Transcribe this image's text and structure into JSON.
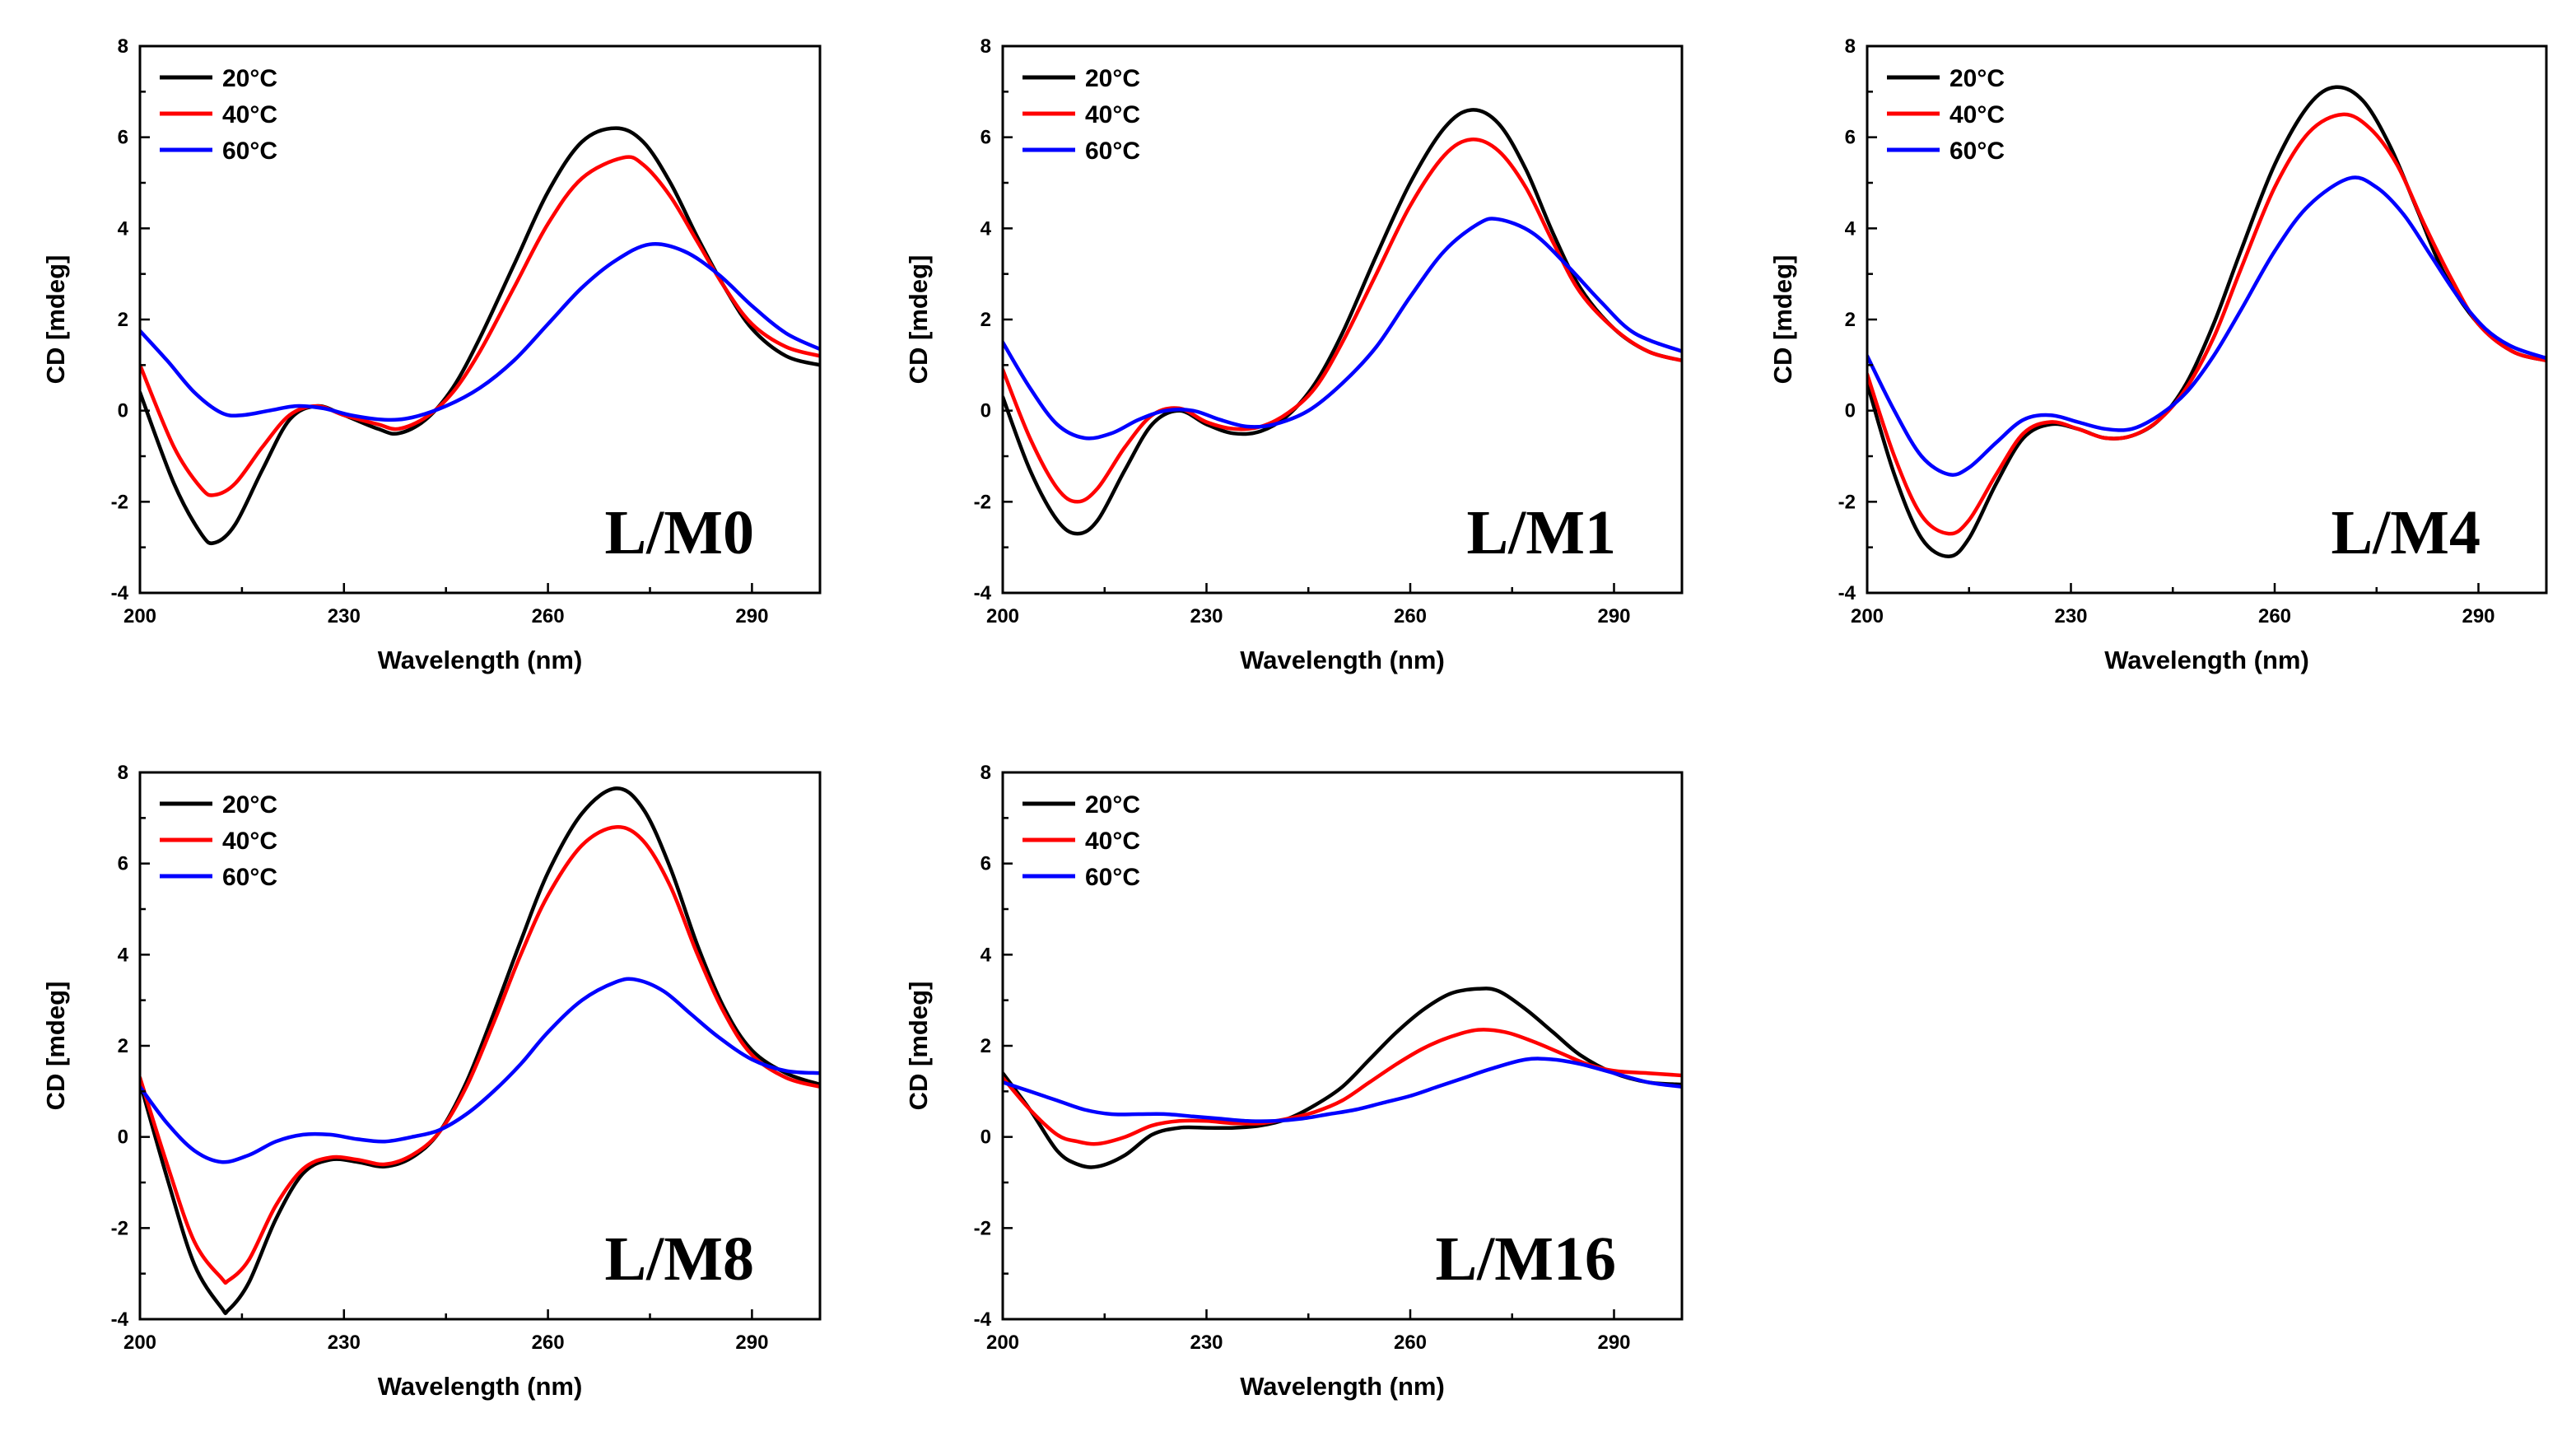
{
  "chart_data": [
    {
      "type": "line",
      "label": "L/M0",
      "xlabel": "Wavelength (nm)",
      "ylabel": "CD [mdeg]",
      "xlim": [
        200,
        300
      ],
      "ylim": [
        -4,
        8
      ],
      "xticks": [
        200,
        230,
        260,
        290
      ],
      "yticks": [
        -4,
        -2,
        0,
        2,
        4,
        6,
        8
      ],
      "legend_position": "top-left",
      "series": [
        {
          "name": "20°C",
          "color": "#000000",
          "x": [
            200,
            205,
            209,
            211,
            214,
            218,
            222,
            226,
            230,
            235,
            238,
            242,
            246,
            250,
            255,
            260,
            265,
            270,
            274,
            278,
            282,
            286,
            290,
            295,
            300
          ],
          "y": [
            0.4,
            -1.6,
            -2.7,
            -2.9,
            -2.5,
            -1.3,
            -0.2,
            0.1,
            -0.1,
            -0.4,
            -0.5,
            -0.2,
            0.5,
            1.6,
            3.2,
            4.8,
            5.9,
            6.2,
            5.9,
            5.0,
            3.8,
            2.7,
            1.8,
            1.2,
            1.0
          ]
        },
        {
          "name": "40°C",
          "color": "#ff0000",
          "x": [
            200,
            205,
            209,
            211,
            214,
            218,
            222,
            226,
            230,
            235,
            238,
            242,
            246,
            250,
            255,
            260,
            265,
            271,
            274,
            278,
            282,
            286,
            290,
            295,
            300
          ],
          "y": [
            1.0,
            -0.8,
            -1.7,
            -1.85,
            -1.6,
            -0.8,
            -0.1,
            0.1,
            -0.1,
            -0.3,
            -0.4,
            -0.15,
            0.4,
            1.3,
            2.7,
            4.1,
            5.1,
            5.55,
            5.4,
            4.7,
            3.7,
            2.7,
            1.9,
            1.4,
            1.2
          ]
        },
        {
          "name": "60°C",
          "color": "#0000ff",
          "x": [
            200,
            204,
            208,
            212,
            215,
            219,
            223,
            227,
            231,
            236,
            240,
            245,
            250,
            255,
            260,
            265,
            270,
            275,
            280,
            285,
            290,
            295,
            300
          ],
          "y": [
            1.75,
            1.1,
            0.4,
            -0.05,
            -0.1,
            0.0,
            0.1,
            0.05,
            -0.1,
            -0.2,
            -0.15,
            0.1,
            0.5,
            1.1,
            1.9,
            2.7,
            3.3,
            3.65,
            3.5,
            3.0,
            2.3,
            1.7,
            1.35
          ]
        }
      ]
    },
    {
      "type": "line",
      "label": "L/M1",
      "xlabel": "Wavelength (nm)",
      "ylabel": "CD [mdeg]",
      "xlim": [
        200,
        300
      ],
      "ylim": [
        -4,
        8
      ],
      "xticks": [
        200,
        230,
        260,
        290
      ],
      "yticks": [
        -4,
        -2,
        0,
        2,
        4,
        6,
        8
      ],
      "legend_position": "top-left",
      "series": [
        {
          "name": "20°C",
          "color": "#000000",
          "x": [
            200,
            204,
            208,
            211,
            214,
            218,
            222,
            226,
            230,
            234,
            238,
            242,
            246,
            250,
            255,
            260,
            265,
            269,
            273,
            277,
            281,
            285,
            290,
            295,
            300
          ],
          "y": [
            0.3,
            -1.3,
            -2.4,
            -2.7,
            -2.4,
            -1.3,
            -0.3,
            0.0,
            -0.3,
            -0.5,
            -0.45,
            -0.1,
            0.6,
            1.7,
            3.4,
            5.0,
            6.2,
            6.6,
            6.3,
            5.3,
            3.9,
            2.7,
            1.8,
            1.3,
            1.1
          ]
        },
        {
          "name": "40°C",
          "color": "#ff0000",
          "x": [
            200,
            204,
            208,
            211,
            214,
            218,
            222,
            226,
            230,
            234,
            238,
            242,
            246,
            250,
            255,
            260,
            265,
            269,
            273,
            277,
            281,
            285,
            290,
            295,
            300
          ],
          "y": [
            0.9,
            -0.6,
            -1.7,
            -2.0,
            -1.7,
            -0.8,
            -0.1,
            0.05,
            -0.25,
            -0.4,
            -0.35,
            -0.05,
            0.5,
            1.5,
            3.0,
            4.5,
            5.6,
            5.95,
            5.7,
            4.9,
            3.7,
            2.6,
            1.8,
            1.3,
            1.1
          ]
        },
        {
          "name": "60°C",
          "color": "#0000ff",
          "x": [
            200,
            204,
            208,
            212,
            216,
            220,
            224,
            228,
            232,
            236,
            240,
            245,
            250,
            255,
            260,
            265,
            270,
            273,
            278,
            283,
            288,
            293,
            300
          ],
          "y": [
            1.5,
            0.5,
            -0.3,
            -0.6,
            -0.5,
            -0.2,
            0.0,
            0.0,
            -0.2,
            -0.35,
            -0.3,
            0.0,
            0.6,
            1.4,
            2.5,
            3.5,
            4.1,
            4.2,
            3.9,
            3.2,
            2.4,
            1.7,
            1.3
          ]
        }
      ]
    },
    {
      "type": "line",
      "label": "L/M4",
      "xlabel": "Wavelength (nm)",
      "ylabel": "CD [mdeg]",
      "xlim": [
        200,
        300
      ],
      "ylim": [
        -4,
        8
      ],
      "xticks": [
        200,
        230,
        260,
        290
      ],
      "yticks": [
        -4,
        -2,
        0,
        2,
        4,
        6,
        8
      ],
      "legend_position": "top-left",
      "series": [
        {
          "name": "20°C",
          "color": "#000000",
          "x": [
            200,
            204,
            208,
            212,
            215,
            219,
            223,
            227,
            231,
            235,
            239,
            243,
            247,
            251,
            255,
            260,
            265,
            269,
            273,
            277,
            281,
            285,
            290,
            295,
            300
          ],
          "y": [
            0.6,
            -1.4,
            -2.8,
            -3.2,
            -2.8,
            -1.6,
            -0.6,
            -0.3,
            -0.4,
            -0.6,
            -0.55,
            -0.2,
            0.6,
            1.9,
            3.5,
            5.4,
            6.7,
            7.1,
            6.8,
            5.8,
            4.4,
            3.0,
            1.9,
            1.3,
            1.1
          ]
        },
        {
          "name": "40°C",
          "color": "#ff0000",
          "x": [
            200,
            204,
            208,
            212,
            215,
            219,
            223,
            227,
            231,
            235,
            239,
            243,
            247,
            251,
            255,
            260,
            265,
            270,
            274,
            278,
            282,
            286,
            290,
            295,
            300
          ],
          "y": [
            0.8,
            -1.0,
            -2.3,
            -2.7,
            -2.4,
            -1.4,
            -0.5,
            -0.25,
            -0.4,
            -0.6,
            -0.55,
            -0.2,
            0.5,
            1.6,
            3.1,
            4.9,
            6.1,
            6.5,
            6.2,
            5.4,
            4.1,
            2.9,
            1.9,
            1.3,
            1.1
          ]
        },
        {
          "name": "60°C",
          "color": "#0000ff",
          "x": [
            200,
            204,
            208,
            212,
            215,
            219,
            223,
            227,
            231,
            235,
            239,
            243,
            247,
            251,
            255,
            260,
            265,
            271,
            275,
            279,
            283,
            287,
            291,
            295,
            300
          ],
          "y": [
            1.2,
            0.0,
            -1.0,
            -1.4,
            -1.25,
            -0.7,
            -0.2,
            -0.1,
            -0.25,
            -0.4,
            -0.4,
            -0.1,
            0.4,
            1.2,
            2.2,
            3.5,
            4.5,
            5.1,
            4.9,
            4.3,
            3.4,
            2.5,
            1.8,
            1.4,
            1.15
          ]
        }
      ]
    },
    {
      "type": "line",
      "label": "L/M8",
      "xlabel": "Wavelength (nm)",
      "ylabel": "CD [mdeg]",
      "xlim": [
        200,
        300
      ],
      "ylim": [
        -4,
        8
      ],
      "xticks": [
        200,
        230,
        260,
        290
      ],
      "yticks": [
        -4,
        -2,
        0,
        2,
        4,
        6,
        8
      ],
      "legend_position": "top-left",
      "series": [
        {
          "name": "20°C",
          "color": "#000000",
          "x": [
            200,
            204,
            208,
            212,
            213,
            216,
            220,
            224,
            228,
            232,
            236,
            240,
            244,
            248,
            252,
            256,
            260,
            265,
            270,
            274,
            278,
            282,
            286,
            290,
            295,
            300
          ],
          "y": [
            1.2,
            -0.9,
            -2.8,
            -3.75,
            -3.8,
            -3.2,
            -1.8,
            -0.8,
            -0.5,
            -0.55,
            -0.65,
            -0.45,
            0.1,
            1.2,
            2.7,
            4.3,
            5.8,
            7.1,
            7.65,
            7.2,
            5.9,
            4.2,
            2.8,
            1.9,
            1.4,
            1.15
          ]
        },
        {
          "name": "40°C",
          "color": "#ff0000",
          "x": [
            200,
            204,
            208,
            212,
            213,
            216,
            220,
            224,
            228,
            232,
            236,
            240,
            244,
            248,
            252,
            256,
            260,
            265,
            270,
            274,
            278,
            282,
            286,
            290,
            295,
            300
          ],
          "y": [
            1.3,
            -0.6,
            -2.3,
            -3.1,
            -3.15,
            -2.7,
            -1.5,
            -0.7,
            -0.45,
            -0.5,
            -0.6,
            -0.4,
            0.1,
            1.1,
            2.5,
            4.0,
            5.3,
            6.4,
            6.8,
            6.5,
            5.5,
            4.0,
            2.7,
            1.8,
            1.3,
            1.1
          ]
        },
        {
          "name": "60°C",
          "color": "#0000ff",
          "x": [
            200,
            204,
            208,
            212,
            216,
            220,
            224,
            228,
            232,
            236,
            240,
            244,
            248,
            252,
            256,
            260,
            265,
            270,
            273,
            277,
            281,
            285,
            290,
            295,
            300
          ],
          "y": [
            1.1,
            0.3,
            -0.3,
            -0.55,
            -0.4,
            -0.1,
            0.05,
            0.05,
            -0.05,
            -0.1,
            0.0,
            0.15,
            0.5,
            1.0,
            1.6,
            2.3,
            3.0,
            3.4,
            3.45,
            3.2,
            2.7,
            2.2,
            1.7,
            1.45,
            1.4
          ]
        }
      ]
    },
    {
      "type": "line",
      "label": "L/M16",
      "xlabel": "Wavelength (nm)",
      "ylabel": "CD [mdeg]",
      "xlim": [
        200,
        300
      ],
      "ylim": [
        -4,
        8
      ],
      "xticks": [
        200,
        230,
        260,
        290
      ],
      "yticks": [
        -4,
        -2,
        0,
        2,
        4,
        6,
        8
      ],
      "legend_position": "top-left",
      "series": [
        {
          "name": "20°C",
          "color": "#000000",
          "x": [
            200,
            204,
            208,
            211,
            214,
            218,
            222,
            226,
            230,
            234,
            238,
            242,
            246,
            250,
            254,
            258,
            262,
            266,
            270,
            273,
            277,
            281,
            285,
            290,
            295,
            300
          ],
          "y": [
            1.4,
            0.6,
            -0.3,
            -0.6,
            -0.65,
            -0.4,
            0.05,
            0.2,
            0.2,
            0.2,
            0.25,
            0.4,
            0.7,
            1.1,
            1.7,
            2.3,
            2.8,
            3.15,
            3.25,
            3.2,
            2.8,
            2.3,
            1.8,
            1.4,
            1.2,
            1.15
          ]
        },
        {
          "name": "40°C",
          "color": "#ff0000",
          "x": [
            200,
            204,
            208,
            211,
            214,
            218,
            222,
            226,
            230,
            234,
            238,
            242,
            246,
            250,
            254,
            258,
            262,
            266,
            270,
            274,
            278,
            282,
            286,
            290,
            295,
            300
          ],
          "y": [
            1.3,
            0.6,
            0.05,
            -0.1,
            -0.15,
            0.0,
            0.25,
            0.35,
            0.35,
            0.3,
            0.3,
            0.4,
            0.55,
            0.8,
            1.2,
            1.6,
            1.95,
            2.2,
            2.35,
            2.3,
            2.1,
            1.85,
            1.6,
            1.45,
            1.4,
            1.35
          ]
        },
        {
          "name": "60°C",
          "color": "#0000ff",
          "x": [
            200,
            204,
            208,
            212,
            216,
            220,
            224,
            228,
            232,
            236,
            240,
            244,
            248,
            252,
            256,
            260,
            264,
            268,
            272,
            277,
            281,
            285,
            290,
            295,
            300
          ],
          "y": [
            1.2,
            1.0,
            0.8,
            0.6,
            0.5,
            0.5,
            0.5,
            0.45,
            0.4,
            0.35,
            0.35,
            0.4,
            0.5,
            0.6,
            0.75,
            0.9,
            1.1,
            1.3,
            1.5,
            1.7,
            1.7,
            1.6,
            1.4,
            1.2,
            1.1
          ]
        }
      ]
    }
  ]
}
